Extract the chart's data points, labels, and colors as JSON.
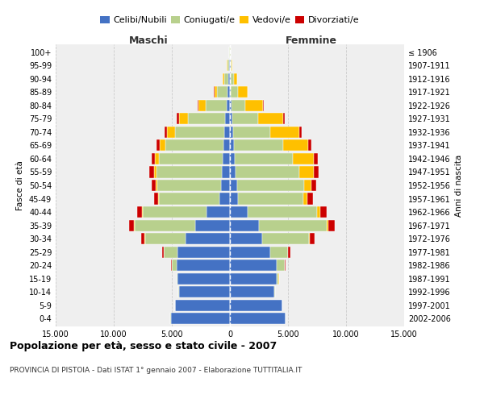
{
  "age_groups": [
    "0-4",
    "5-9",
    "10-14",
    "15-19",
    "20-24",
    "25-29",
    "30-34",
    "35-39",
    "40-44",
    "45-49",
    "50-54",
    "55-59",
    "60-64",
    "65-69",
    "70-74",
    "75-79",
    "80-84",
    "85-89",
    "90-94",
    "95-99",
    "100+"
  ],
  "birth_years": [
    "2002-2006",
    "1997-2001",
    "1992-1996",
    "1987-1991",
    "1982-1986",
    "1977-1981",
    "1972-1976",
    "1967-1971",
    "1962-1966",
    "1957-1961",
    "1952-1956",
    "1947-1951",
    "1942-1946",
    "1937-1941",
    "1932-1936",
    "1927-1931",
    "1922-1926",
    "1917-1921",
    "1912-1916",
    "1907-1911",
    "≤ 1906"
  ],
  "maschi": {
    "celibi": [
      5100,
      4700,
      4400,
      4500,
      4600,
      4500,
      3800,
      3000,
      2000,
      900,
      750,
      700,
      600,
      550,
      500,
      400,
      300,
      200,
      120,
      80,
      30
    ],
    "coniugati": [
      5,
      10,
      30,
      100,
      400,
      1200,
      3500,
      5200,
      5500,
      5200,
      5500,
      5600,
      5500,
      5000,
      4200,
      3200,
      1800,
      900,
      400,
      150,
      50
    ],
    "vedovi": [
      1,
      1,
      2,
      3,
      5,
      10,
      30,
      60,
      80,
      100,
      150,
      250,
      350,
      500,
      700,
      800,
      600,
      250,
      80,
      30,
      10
    ],
    "divorziati": [
      1,
      2,
      5,
      10,
      40,
      100,
      300,
      400,
      400,
      300,
      350,
      400,
      300,
      250,
      200,
      150,
      80,
      40,
      20,
      10,
      5
    ]
  },
  "femmine": {
    "nubili": [
      4800,
      4500,
      3800,
      4000,
      4000,
      3500,
      2800,
      2500,
      1500,
      700,
      600,
      500,
      400,
      350,
      280,
      200,
      150,
      100,
      80,
      50,
      20
    ],
    "coniugate": [
      5,
      15,
      60,
      200,
      700,
      1500,
      4000,
      5800,
      6000,
      5600,
      5800,
      5500,
      5000,
      4200,
      3200,
      2200,
      1200,
      600,
      250,
      100,
      40
    ],
    "vedove": [
      1,
      2,
      3,
      5,
      15,
      30,
      80,
      150,
      250,
      350,
      600,
      1200,
      1800,
      2200,
      2500,
      2200,
      1500,
      800,
      300,
      80,
      20
    ],
    "divorziate": [
      1,
      2,
      5,
      20,
      60,
      150,
      400,
      600,
      600,
      500,
      400,
      450,
      350,
      280,
      200,
      120,
      60,
      30,
      15,
      8,
      3
    ]
  },
  "color_celibi": "#4472c4",
  "color_coniugati": "#b8d08d",
  "color_vedovi": "#ffc000",
  "color_divorziati": "#cc0000",
  "title": "Popolazione per età, sesso e stato civile - 2007",
  "subtitle": "PROVINCIA DI PISTOIA - Dati ISTAT 1° gennaio 2007 - Elaborazione TUTTITALIA.IT",
  "xlabel_left": "Maschi",
  "xlabel_right": "Femmine",
  "ylabel_left": "Fasce di età",
  "ylabel_right": "Anni di nascita",
  "xlim": 15000,
  "bg_color": "#ffffff",
  "plot_bg": "#efefef",
  "grid_color": "#cccccc",
  "bar_height": 0.85
}
